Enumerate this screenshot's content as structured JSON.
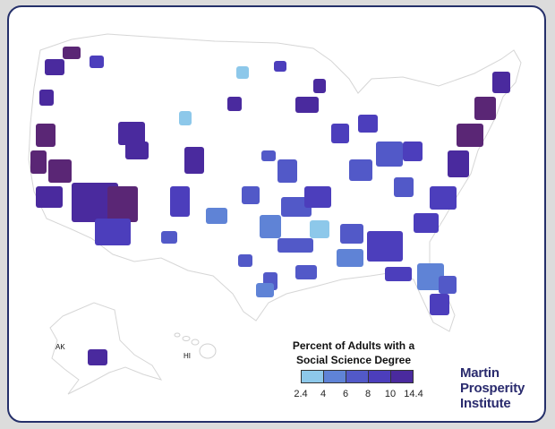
{
  "legend": {
    "title_line1": "Percent of Adults with a",
    "title_line2": "Social Science Degree",
    "ticks": [
      "2.4",
      "4",
      "6",
      "8",
      "10",
      "14.4"
    ],
    "colors": [
      "#8dc8ea",
      "#5f83d6",
      "#5259c8",
      "#4c3ebc",
      "#4a2a9e",
      "#5a2675"
    ]
  },
  "labels": {
    "alaska": "AK",
    "hawaii": "HI"
  },
  "logo": {
    "line1": "Martin",
    "line2": "Prosperity",
    "line3": "Institute"
  },
  "colors": {
    "background": "#dcdcdc",
    "frame_border": "#25306a",
    "states_fill": "#ffffff",
    "state_borders": "#e3e3e3"
  }
}
